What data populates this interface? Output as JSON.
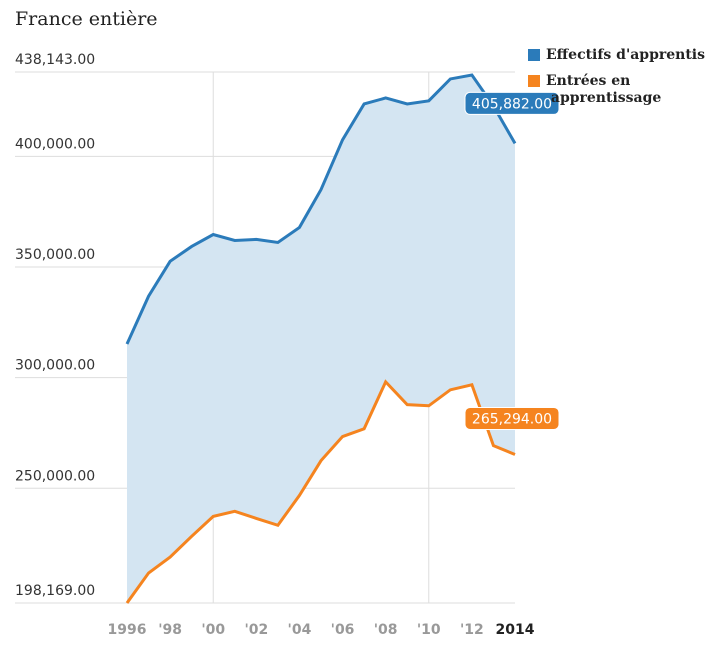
{
  "chart_data": {
    "type": "line",
    "title": "France entière",
    "x": [
      1996,
      1997,
      1998,
      1999,
      2000,
      2001,
      2002,
      2003,
      2004,
      2005,
      2006,
      2007,
      2008,
      2009,
      2010,
      2011,
      2012,
      2013,
      2014
    ],
    "xlim": [
      1996,
      2014
    ],
    "xticks": [
      1996,
      {
        "value": 1998,
        "label": "'98"
      },
      {
        "value": 2000,
        "label": "'00"
      },
      {
        "value": 2002,
        "label": "'02"
      },
      {
        "value": 2004,
        "label": "'04"
      },
      {
        "value": 2006,
        "label": "'06"
      },
      {
        "value": 2008,
        "label": "'08"
      },
      {
        "value": 2010,
        "label": "'10"
      },
      {
        "value": 2012,
        "label": "'12"
      },
      2014
    ],
    "x_grid_lines": [
      2000,
      2010
    ],
    "ylim": [
      198169,
      438143
    ],
    "yticks": [
      {
        "value": 198169,
        "label": "198,169.00"
      },
      {
        "value": 250000,
        "label": "250,000.00"
      },
      {
        "value": 300000,
        "label": "300,000.00"
      },
      {
        "value": 350000,
        "label": "350,000.00"
      },
      {
        "value": 400000,
        "label": "400,000.00"
      },
      {
        "value": 438143,
        "label": "438,143.00"
      }
    ],
    "fill_between": "#d4e5f2",
    "series": [
      {
        "name": "Effectifs d'apprentis",
        "color": "#2b7bba",
        "values": [
          315200,
          336800,
          352600,
          359300,
          364700,
          362000,
          362500,
          361100,
          367900,
          385000,
          407500,
          423700,
          426400,
          423700,
          425100,
          435000,
          436800,
          422800,
          405882
        ],
        "value_labels": [
          null,
          null,
          null,
          null,
          null,
          null,
          null,
          null,
          null,
          null,
          null,
          null,
          null,
          null,
          null,
          null,
          null,
          null,
          "405,882.00"
        ]
      },
      {
        "name": "Entrées en apprentissage",
        "color": "#f5841f",
        "values": [
          198169,
          211700,
          218900,
          228300,
          237300,
          239600,
          236400,
          233300,
          246800,
          262500,
          273400,
          276900,
          298100,
          287800,
          287300,
          294500,
          296800,
          269300,
          265294
        ],
        "value_labels": [
          null,
          null,
          null,
          null,
          null,
          null,
          null,
          null,
          null,
          null,
          null,
          null,
          null,
          null,
          null,
          null,
          null,
          null,
          "265,294.00"
        ]
      }
    ]
  }
}
